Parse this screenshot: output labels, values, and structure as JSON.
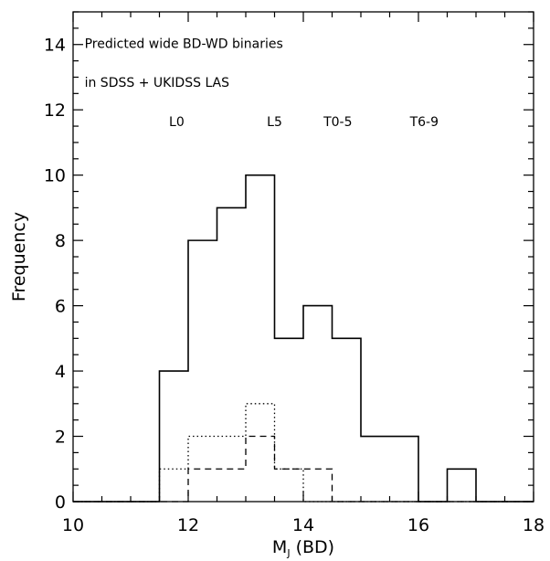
{
  "chart_data": {
    "type": "histogram",
    "xlabel": "M",
    "xlabel_subscript": "J",
    "xlabel_suffix": " (BD)",
    "ylabel": "Frequency",
    "xlim": [
      10,
      18
    ],
    "ylim": [
      0,
      15
    ],
    "xticks": [
      10,
      12,
      14,
      16,
      18
    ],
    "yticks": [
      0,
      2,
      4,
      6,
      8,
      10,
      12,
      14
    ],
    "annotations": [
      {
        "text": "Predicted wide BD-WD binaries",
        "x": 10.2,
        "y": 13.9
      },
      {
        "text": "in SDSS + UKIDSS LAS",
        "x": 10.2,
        "y": 12.7
      }
    ],
    "spectral_labels": [
      {
        "text": "L0",
        "x": 11.8,
        "y": 11.5
      },
      {
        "text": "L5",
        "x": 13.5,
        "y": 11.5
      },
      {
        "text": "T0-5",
        "x": 14.6,
        "y": 11.5
      },
      {
        "text": "T6-9",
        "x": 16.1,
        "y": 11.5
      }
    ],
    "bin_edges": [
      10,
      10.5,
      11,
      11.5,
      12,
      12.5,
      13,
      13.5,
      14,
      14.5,
      15,
      15.5,
      16,
      16.5,
      17,
      17.5,
      18
    ],
    "series": [
      {
        "style": "solid",
        "values": [
          0,
          0,
          0,
          4,
          8,
          9,
          10,
          5,
          6,
          5,
          2,
          2,
          0,
          1,
          0,
          0
        ]
      },
      {
        "style": "dotted",
        "values": [
          0,
          0,
          0,
          1,
          2,
          2,
          3,
          1,
          0,
          0,
          0,
          0,
          0,
          0,
          0,
          0
        ]
      },
      {
        "style": "dashed",
        "values": [
          0,
          0,
          0,
          0,
          1,
          1,
          2,
          1,
          1,
          0,
          0,
          0,
          0,
          0,
          0,
          0
        ]
      }
    ]
  }
}
